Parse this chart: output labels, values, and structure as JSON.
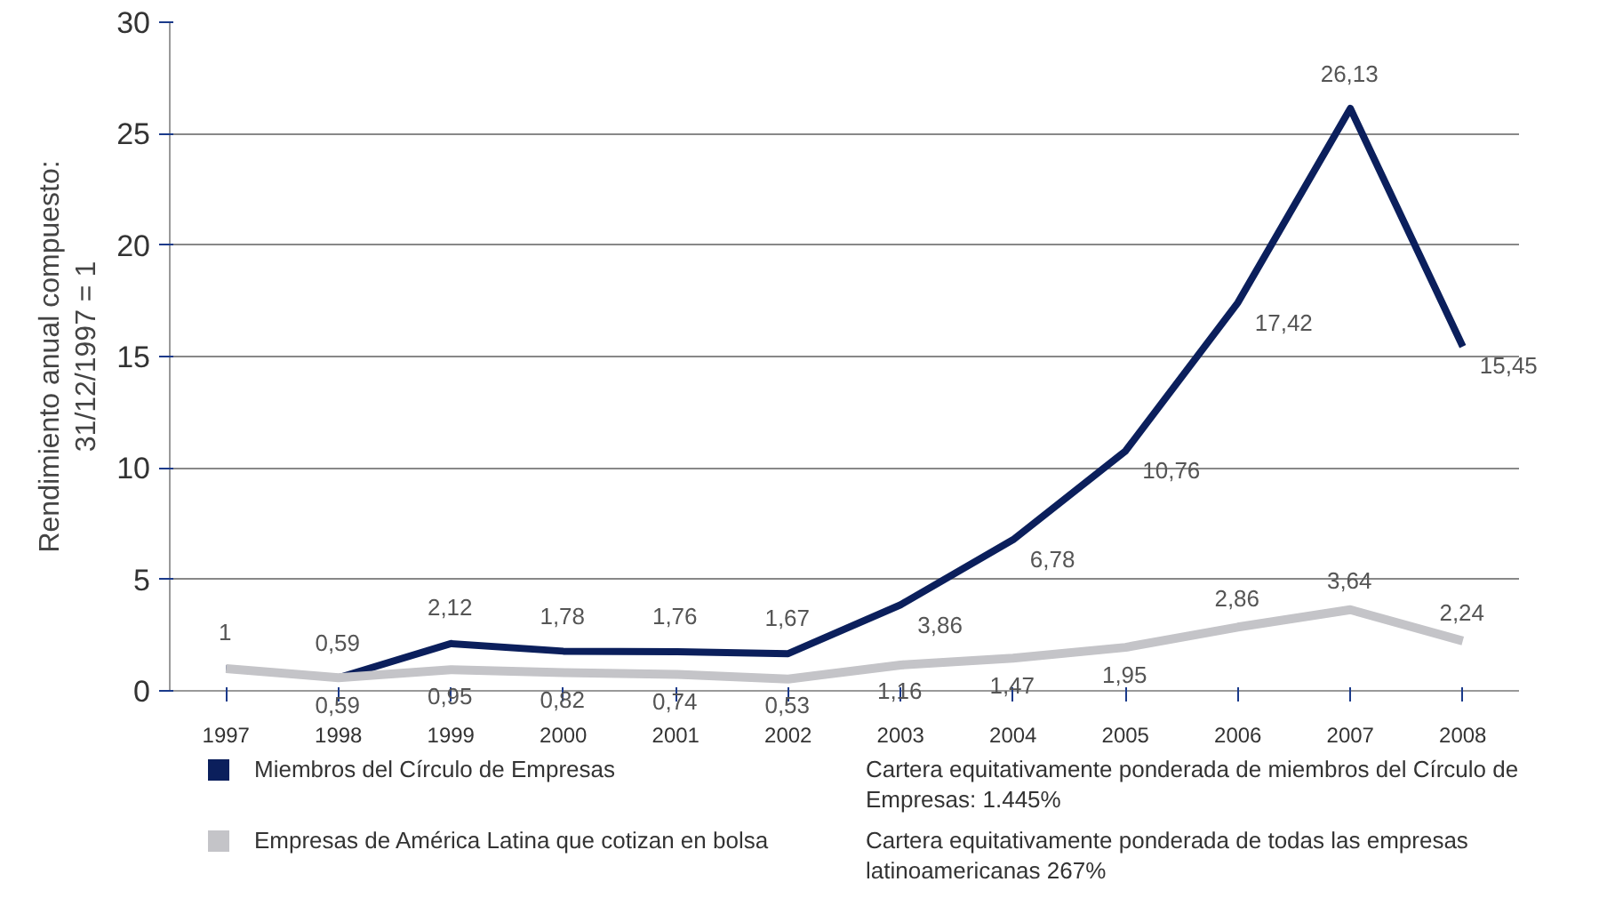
{
  "chart_data": {
    "type": "line",
    "ylabel": "Rendimiento anual compuesto:\n31/12/1997 = 1",
    "categories": [
      "1997",
      "1998",
      "1999",
      "2000",
      "2001",
      "2002",
      "2003",
      "2004",
      "2005",
      "2006",
      "2007",
      "2008"
    ],
    "series": [
      {
        "name": "Miembros del Círculo de Empresas",
        "color": "#0b1f5c",
        "values": [
          1,
          0.59,
          2.12,
          1.78,
          1.76,
          1.67,
          3.86,
          6.78,
          10.76,
          17.42,
          26.13,
          15.45
        ],
        "value_labels": [
          "1",
          "0,59",
          "2,12",
          "1,78",
          "1,76",
          "1,67",
          "3,86",
          "6,78",
          "10,76",
          "17,42",
          "26,13",
          "15,45"
        ]
      },
      {
        "name": "Empresas de América Latina que cotizan en bolsa",
        "color": "#c4c4c8",
        "values": [
          1,
          0.59,
          0.95,
          0.82,
          0.74,
          0.53,
          1.16,
          1.47,
          1.95,
          2.86,
          3.64,
          2.24
        ],
        "value_labels": [
          null,
          "0,59",
          "0,95",
          "0,82",
          "0,74",
          "0,53",
          "1,16",
          "1,47",
          "1,95",
          "2,86",
          "3,64",
          "2,24"
        ]
      }
    ],
    "ylim": [
      0,
      30
    ],
    "yticks": [
      0,
      5,
      10,
      15,
      20,
      25,
      30
    ],
    "grid": "y",
    "legend": "bottom",
    "annotations": [
      "Cartera equitativamente ponderada de miembros del Círculo de Empresas: 1.445%",
      "Cartera equitativamente ponderada de todas las empresas latinoamericanas  267%"
    ]
  }
}
